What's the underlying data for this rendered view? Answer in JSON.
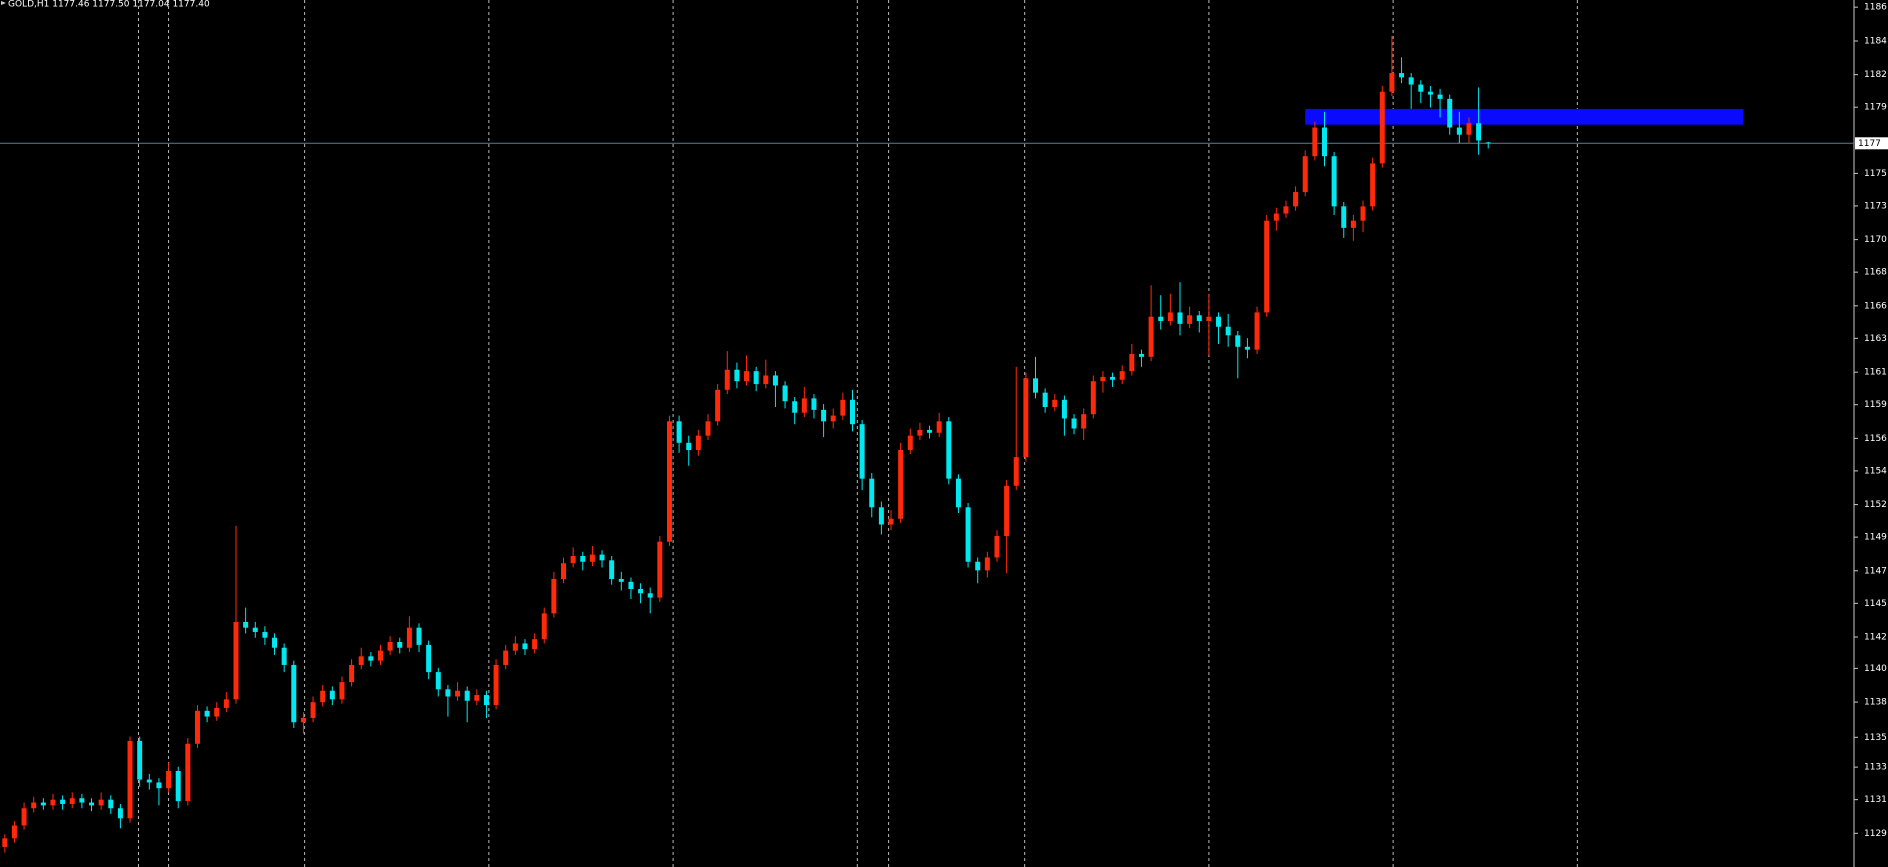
{
  "chart_data": {
    "type": "candlestick",
    "title": "GOLD,H1  1177.46 1177.50 1177.04 1177.40",
    "up_color": "#ff2a0a",
    "down_color": "#00e8f0",
    "ylim": [
      1126.9,
      1187.4
    ],
    "yticks": [
      {
        "value": 1186.9,
        "label": "1186"
      },
      {
        "value": 1184.54,
        "label": "1184"
      },
      {
        "value": 1182.19,
        "label": "1182"
      },
      {
        "value": 1179.92,
        "label": "1179"
      },
      {
        "value": 1175.3,
        "label": "1175"
      },
      {
        "value": 1173.03,
        "label": "1173"
      },
      {
        "value": 1170.68,
        "label": "1170"
      },
      {
        "value": 1168.41,
        "label": "1168"
      },
      {
        "value": 1166.06,
        "label": "1166"
      },
      {
        "value": 1163.79,
        "label": "1163"
      },
      {
        "value": 1161.43,
        "label": "1161"
      },
      {
        "value": 1159.16,
        "label": "1159"
      },
      {
        "value": 1156.81,
        "label": "1156"
      },
      {
        "value": 1154.54,
        "label": "1154"
      },
      {
        "value": 1152.19,
        "label": "1152"
      },
      {
        "value": 1149.92,
        "label": "1149"
      },
      {
        "value": 1147.57,
        "label": "1147"
      },
      {
        "value": 1145.3,
        "label": "1145"
      },
      {
        "value": 1142.95,
        "label": "1142"
      },
      {
        "value": 1140.76,
        "label": "1140"
      },
      {
        "value": 1138.41,
        "label": "1138"
      },
      {
        "value": 1135.95,
        "label": "1135"
      },
      {
        "value": 1133.87,
        "label": "1133"
      },
      {
        "value": 1131.6,
        "label": "1131"
      },
      {
        "value": 1129.25,
        "label": "1129"
      }
    ],
    "price_line": {
      "value": 1177.4,
      "label": "1177",
      "color": "#5f7f9a"
    },
    "zone": {
      "x": [
        135,
        180.5
      ],
      "y": [
        1178.7,
        1179.8
      ],
      "color": "#0a0aff"
    },
    "ohlc": [
      [
        1128.3,
        1129.2,
        1127.9,
        1128.9
      ],
      [
        1128.9,
        1130.1,
        1128.6,
        1129.8
      ],
      [
        1129.8,
        1131.4,
        1129.5,
        1131.0
      ],
      [
        1131.0,
        1131.8,
        1130.7,
        1131.4
      ],
      [
        1131.4,
        1131.7,
        1130.9,
        1131.2
      ],
      [
        1131.2,
        1132.0,
        1130.9,
        1131.6
      ],
      [
        1131.6,
        1131.9,
        1130.9,
        1131.3
      ],
      [
        1131.3,
        1132.1,
        1131.0,
        1131.7
      ],
      [
        1131.7,
        1132.0,
        1131.0,
        1131.4
      ],
      [
        1131.4,
        1131.7,
        1130.8,
        1131.2
      ],
      [
        1131.2,
        1132.1,
        1130.9,
        1131.6
      ],
      [
        1131.6,
        1131.9,
        1130.6,
        1131.0
      ],
      [
        1131.0,
        1131.3,
        1129.6,
        1130.3
      ],
      [
        1130.3,
        1136.0,
        1130.0,
        1135.7
      ],
      [
        1135.7,
        1136.0,
        1132.5,
        1133.0
      ],
      [
        1133.0,
        1133.4,
        1132.3,
        1132.8
      ],
      [
        1132.8,
        1133.1,
        1131.2,
        1132.4
      ],
      [
        1132.4,
        1134.2,
        1132.1,
        1133.6
      ],
      [
        1133.6,
        1133.9,
        1131.0,
        1131.5
      ],
      [
        1131.5,
        1135.9,
        1131.2,
        1135.5
      ],
      [
        1135.5,
        1138.2,
        1135.2,
        1137.8
      ],
      [
        1137.8,
        1138.1,
        1137.0,
        1137.4
      ],
      [
        1137.4,
        1138.4,
        1137.1,
        1138.0
      ],
      [
        1138.0,
        1139.1,
        1137.7,
        1138.6
      ],
      [
        1138.6,
        1150.7,
        1138.3,
        1144.0
      ],
      [
        1144.0,
        1145.0,
        1143.2,
        1143.6
      ],
      [
        1143.6,
        1144.0,
        1142.9,
        1143.3
      ],
      [
        1143.3,
        1143.7,
        1142.4,
        1142.9
      ],
      [
        1142.9,
        1143.2,
        1141.7,
        1142.2
      ],
      [
        1142.2,
        1142.5,
        1140.5,
        1141.0
      ],
      [
        1141.0,
        1141.3,
        1136.6,
        1137.0
      ],
      [
        1137.0,
        1137.7,
        1136.2,
        1137.3
      ],
      [
        1137.3,
        1138.8,
        1137.0,
        1138.4
      ],
      [
        1138.4,
        1139.6,
        1138.1,
        1139.2
      ],
      [
        1139.2,
        1139.5,
        1138.2,
        1138.6
      ],
      [
        1138.6,
        1140.2,
        1138.3,
        1139.8
      ],
      [
        1139.8,
        1141.4,
        1139.5,
        1141.0
      ],
      [
        1141.0,
        1142.2,
        1140.7,
        1141.6
      ],
      [
        1141.6,
        1141.9,
        1140.9,
        1141.3
      ],
      [
        1141.3,
        1142.4,
        1141.0,
        1142.0
      ],
      [
        1142.0,
        1143.0,
        1141.7,
        1142.6
      ],
      [
        1142.6,
        1142.9,
        1141.8,
        1142.2
      ],
      [
        1142.2,
        1144.4,
        1141.9,
        1143.6
      ],
      [
        1143.6,
        1143.9,
        1141.9,
        1142.4
      ],
      [
        1142.4,
        1142.7,
        1140.0,
        1140.5
      ],
      [
        1140.5,
        1140.8,
        1138.8,
        1139.3
      ],
      [
        1139.3,
        1139.6,
        1137.4,
        1138.8
      ],
      [
        1138.8,
        1139.8,
        1138.5,
        1139.2
      ],
      [
        1139.2,
        1139.5,
        1137.0,
        1138.5
      ],
      [
        1138.5,
        1139.3,
        1138.2,
        1138.9
      ],
      [
        1138.9,
        1139.2,
        1137.3,
        1138.2
      ],
      [
        1138.2,
        1141.4,
        1137.9,
        1141.0
      ],
      [
        1141.0,
        1142.4,
        1140.7,
        1142.0
      ],
      [
        1142.0,
        1143.0,
        1141.7,
        1142.5
      ],
      [
        1142.5,
        1142.8,
        1141.7,
        1142.1
      ],
      [
        1142.1,
        1143.2,
        1141.8,
        1142.8
      ],
      [
        1142.8,
        1145.0,
        1142.5,
        1144.6
      ],
      [
        1144.6,
        1147.5,
        1144.3,
        1147.0
      ],
      [
        1147.0,
        1148.5,
        1146.7,
        1148.1
      ],
      [
        1148.1,
        1149.2,
        1147.8,
        1148.6
      ],
      [
        1148.6,
        1148.9,
        1147.6,
        1148.2
      ],
      [
        1148.2,
        1149.3,
        1147.9,
        1148.7
      ],
      [
        1148.7,
        1149.0,
        1147.8,
        1148.3
      ],
      [
        1148.3,
        1148.6,
        1146.6,
        1147.0
      ],
      [
        1147.0,
        1147.5,
        1146.2,
        1146.8
      ],
      [
        1146.8,
        1147.1,
        1145.6,
        1146.3
      ],
      [
        1146.3,
        1146.7,
        1145.3,
        1146.0
      ],
      [
        1146.0,
        1146.4,
        1144.6,
        1145.7
      ],
      [
        1145.7,
        1150.0,
        1145.4,
        1149.6
      ],
      [
        1149.6,
        1158.4,
        1149.3,
        1158.0
      ],
      [
        1158.0,
        1158.4,
        1155.8,
        1156.5
      ],
      [
        1156.5,
        1157.0,
        1154.9,
        1156.0
      ],
      [
        1156.0,
        1157.4,
        1155.6,
        1157.0
      ],
      [
        1157.0,
        1158.5,
        1156.7,
        1158.0
      ],
      [
        1158.0,
        1160.6,
        1157.7,
        1160.2
      ],
      [
        1160.2,
        1162.9,
        1159.9,
        1161.6
      ],
      [
        1161.6,
        1162.1,
        1160.3,
        1160.8
      ],
      [
        1160.8,
        1162.6,
        1160.5,
        1161.5
      ],
      [
        1161.5,
        1161.8,
        1160.1,
        1160.6
      ],
      [
        1160.6,
        1162.3,
        1160.3,
        1161.2
      ],
      [
        1161.2,
        1161.5,
        1159.0,
        1160.5
      ],
      [
        1160.5,
        1160.8,
        1158.9,
        1159.4
      ],
      [
        1159.4,
        1159.7,
        1157.8,
        1158.6
      ],
      [
        1158.6,
        1160.4,
        1158.3,
        1159.6
      ],
      [
        1159.6,
        1159.9,
        1158.2,
        1158.8
      ],
      [
        1158.8,
        1159.2,
        1156.9,
        1158.0
      ],
      [
        1158.0,
        1158.9,
        1157.5,
        1158.4
      ],
      [
        1158.4,
        1160.0,
        1158.1,
        1159.5
      ],
      [
        1159.5,
        1160.2,
        1157.3,
        1157.8
      ],
      [
        1157.8,
        1158.1,
        1153.2,
        1154.0
      ],
      [
        1154.0,
        1154.4,
        1151.3,
        1152.0
      ],
      [
        1152.0,
        1152.4,
        1150.1,
        1150.8
      ],
      [
        1150.8,
        1151.8,
        1150.4,
        1151.2
      ],
      [
        1151.2,
        1156.5,
        1150.9,
        1156.0
      ],
      [
        1156.0,
        1157.5,
        1155.7,
        1157.0
      ],
      [
        1157.0,
        1157.9,
        1156.7,
        1157.4
      ],
      [
        1157.4,
        1157.7,
        1156.8,
        1157.2
      ],
      [
        1157.2,
        1158.6,
        1156.9,
        1158.0
      ],
      [
        1158.0,
        1158.3,
        1153.6,
        1154.0
      ],
      [
        1154.0,
        1154.3,
        1151.6,
        1152.0
      ],
      [
        1152.0,
        1152.3,
        1147.8,
        1148.2
      ],
      [
        1148.2,
        1148.5,
        1146.7,
        1147.6
      ],
      [
        1147.6,
        1148.9,
        1147.1,
        1148.5
      ],
      [
        1148.5,
        1150.4,
        1148.2,
        1150.0
      ],
      [
        1150.0,
        1153.9,
        1147.4,
        1153.5
      ],
      [
        1153.5,
        1161.8,
        1153.2,
        1155.5
      ],
      [
        1155.5,
        1161.4,
        1155.2,
        1161.0
      ],
      [
        1161.0,
        1162.5,
        1159.6,
        1160.0
      ],
      [
        1160.0,
        1160.3,
        1158.6,
        1159.0
      ],
      [
        1159.0,
        1159.9,
        1158.7,
        1159.5
      ],
      [
        1159.5,
        1159.8,
        1157.0,
        1158.2
      ],
      [
        1158.2,
        1158.5,
        1157.1,
        1157.5
      ],
      [
        1157.5,
        1158.9,
        1156.7,
        1158.5
      ],
      [
        1158.5,
        1161.2,
        1158.2,
        1160.8
      ],
      [
        1160.8,
        1161.5,
        1160.0,
        1161.1
      ],
      [
        1161.1,
        1161.4,
        1160.4,
        1160.9
      ],
      [
        1160.9,
        1161.9,
        1160.6,
        1161.5
      ],
      [
        1161.5,
        1163.4,
        1161.2,
        1162.7
      ],
      [
        1162.7,
        1163.0,
        1161.8,
        1162.5
      ],
      [
        1162.5,
        1167.5,
        1162.2,
        1165.3
      ],
      [
        1165.3,
        1166.8,
        1164.4,
        1165.0
      ],
      [
        1165.0,
        1166.9,
        1164.7,
        1165.6
      ],
      [
        1165.6,
        1167.7,
        1164.0,
        1164.8
      ],
      [
        1164.8,
        1166.0,
        1164.5,
        1165.4
      ],
      [
        1165.4,
        1165.7,
        1164.2,
        1165.0
      ],
      [
        1165.0,
        1166.9,
        1162.6,
        1165.3
      ],
      [
        1165.3,
        1165.6,
        1163.4,
        1164.6
      ],
      [
        1164.6,
        1165.5,
        1163.2,
        1164.0
      ],
      [
        1164.0,
        1164.3,
        1161.0,
        1163.2
      ],
      [
        1163.2,
        1163.8,
        1162.4,
        1163.0
      ],
      [
        1163.0,
        1166.0,
        1162.7,
        1165.6
      ],
      [
        1165.6,
        1172.4,
        1165.3,
        1172.0
      ],
      [
        1172.0,
        1172.9,
        1171.3,
        1172.5
      ],
      [
        1172.5,
        1173.4,
        1172.2,
        1173.0
      ],
      [
        1173.0,
        1174.4,
        1172.7,
        1174.0
      ],
      [
        1174.0,
        1176.9,
        1173.7,
        1176.5
      ],
      [
        1176.5,
        1178.9,
        1176.2,
        1178.5
      ],
      [
        1178.5,
        1179.6,
        1175.8,
        1176.5
      ],
      [
        1176.5,
        1176.8,
        1172.4,
        1173.0
      ],
      [
        1173.0,
        1173.3,
        1170.8,
        1171.5
      ],
      [
        1171.5,
        1172.4,
        1170.6,
        1172.0
      ],
      [
        1172.0,
        1173.4,
        1171.2,
        1173.0
      ],
      [
        1173.0,
        1176.4,
        1172.7,
        1176.0
      ],
      [
        1176.0,
        1181.4,
        1175.7,
        1181.0
      ],
      [
        1181.0,
        1184.9,
        1180.7,
        1182.3
      ],
      [
        1182.3,
        1183.4,
        1181.6,
        1182.0
      ],
      [
        1182.0,
        1182.3,
        1179.8,
        1181.5
      ],
      [
        1181.5,
        1181.8,
        1180.2,
        1181.0
      ],
      [
        1181.0,
        1181.4,
        1179.9,
        1180.8
      ],
      [
        1180.8,
        1181.2,
        1179.2,
        1180.5
      ],
      [
        1180.5,
        1180.8,
        1178.0,
        1178.5
      ],
      [
        1178.5,
        1179.6,
        1177.4,
        1178.0
      ],
      [
        1178.0,
        1179.2,
        1177.4,
        1178.8
      ],
      [
        1178.8,
        1181.3,
        1176.6,
        1177.6
      ],
      [
        1177.46,
        1177.5,
        1177.04,
        1177.4
      ]
    ]
  }
}
